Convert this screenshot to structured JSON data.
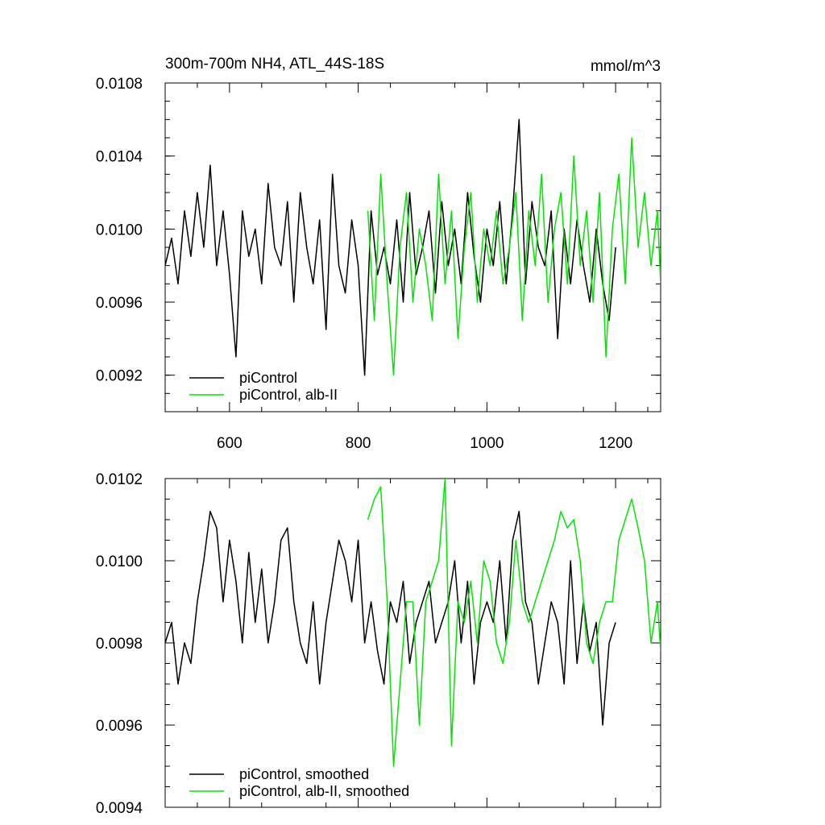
{
  "chart_data": [
    {
      "type": "line",
      "title": "300m-700m NH4, ATL_44S-18S",
      "units": "mmol/m^3",
      "xlim": [
        500,
        1270
      ],
      "ylim": [
        0.009,
        0.0108
      ],
      "xticks": [
        600,
        800,
        1000,
        1200
      ],
      "xtick_labels": [
        "600",
        "800",
        "1000",
        "1200"
      ],
      "yticks": [
        0.0092,
        0.0096,
        0.01,
        0.0104,
        0.0108
      ],
      "ytick_labels": [
        "0.0092",
        "0.0096",
        "0.0100",
        "0.0104",
        "0.0108"
      ],
      "grid": false,
      "legend_position": "bottom-left",
      "series": [
        {
          "name": "piControl",
          "color": "#000000",
          "x": [
            500,
            510,
            520,
            530,
            540,
            550,
            560,
            570,
            580,
            590,
            600,
            610,
            620,
            630,
            640,
            650,
            660,
            670,
            680,
            690,
            700,
            710,
            720,
            730,
            740,
            750,
            760,
            770,
            780,
            790,
            800,
            810,
            820,
            830,
            840,
            850,
            860,
            870,
            880,
            890,
            900,
            910,
            920,
            930,
            940,
            950,
            960,
            970,
            980,
            990,
            1000,
            1010,
            1020,
            1030,
            1040,
            1050,
            1060,
            1070,
            1080,
            1090,
            1100,
            1110,
            1120,
            1130,
            1140,
            1150,
            1160,
            1170,
            1180,
            1190,
            1200
          ],
          "values": [
            0.0098,
            0.00995,
            0.0097,
            0.0101,
            0.00985,
            0.0102,
            0.0099,
            0.01035,
            0.0098,
            0.0101,
            0.00975,
            0.0093,
            0.0101,
            0.00985,
            0.01,
            0.0097,
            0.01025,
            0.0099,
            0.0098,
            0.01015,
            0.0096,
            0.0102,
            0.0099,
            0.0097,
            0.01005,
            0.00945,
            0.0103,
            0.0098,
            0.00965,
            0.01005,
            0.0098,
            0.0092,
            0.0101,
            0.00975,
            0.0099,
            0.0097,
            0.01005,
            0.0096,
            0.0102,
            0.00975,
            0.0099,
            0.0101,
            0.00965,
            0.01015,
            0.0098,
            0.01,
            0.0097,
            0.0102,
            0.00985,
            0.0096,
            0.01,
            0.0098,
            0.01015,
            0.0097,
            0.0101,
            0.0106,
            0.0097,
            0.01015,
            0.0099,
            0.0098,
            0.0101,
            0.0094,
            0.01,
            0.0097,
            0.01005,
            0.0098,
            0.0096,
            0.01,
            0.0097,
            0.0095,
            0.0099
          ]
        },
        {
          "name": "piControl, alb-II",
          "color": "#00e600",
          "x": [
            815,
            825,
            835,
            845,
            855,
            865,
            875,
            885,
            895,
            905,
            915,
            925,
            935,
            945,
            955,
            965,
            975,
            985,
            995,
            1005,
            1015,
            1025,
            1035,
            1045,
            1055,
            1065,
            1075,
            1085,
            1095,
            1105,
            1115,
            1125,
            1135,
            1145,
            1155,
            1165,
            1175,
            1185,
            1195,
            1205,
            1215,
            1225,
            1235,
            1245,
            1255,
            1265,
            1270
          ],
          "values": [
            0.0101,
            0.0095,
            0.0103,
            0.0097,
            0.0092,
            0.0099,
            0.0102,
            0.0096,
            0.01,
            0.0098,
            0.0095,
            0.0103,
            0.0097,
            0.0101,
            0.0094,
            0.0099,
            0.0102,
            0.0096,
            0.01,
            0.0098,
            0.0101,
            0.0097,
            0.0099,
            0.0102,
            0.0095,
            0.0101,
            0.0098,
            0.0103,
            0.0096,
            0.01,
            0.0102,
            0.0097,
            0.0104,
            0.0098,
            0.0101,
            0.0096,
            0.0102,
            0.0093,
            0.01,
            0.0103,
            0.0097,
            0.0105,
            0.0099,
            0.0102,
            0.0098,
            0.0101,
            0.0097
          ]
        }
      ]
    },
    {
      "type": "line",
      "title": "",
      "xlim": [
        500,
        1270
      ],
      "ylim": [
        0.0094,
        0.0102
      ],
      "xticks": [
        600,
        800,
        1000,
        1200
      ],
      "yticks": [
        0.0094,
        0.0096,
        0.0098,
        0.01,
        0.0102
      ],
      "ytick_labels": [
        "0.0094",
        "0.0096",
        "0.0098",
        "0.0100",
        "0.0102"
      ],
      "grid": false,
      "legend_position": "bottom-left",
      "series": [
        {
          "name": "piControl, smoothed",
          "color": "#000000",
          "x": [
            500,
            510,
            520,
            530,
            540,
            550,
            560,
            570,
            580,
            590,
            600,
            610,
            620,
            630,
            640,
            650,
            660,
            670,
            680,
            690,
            700,
            710,
            720,
            730,
            740,
            750,
            760,
            770,
            780,
            790,
            800,
            810,
            820,
            830,
            840,
            850,
            860,
            870,
            880,
            890,
            900,
            910,
            920,
            930,
            940,
            950,
            960,
            970,
            980,
            990,
            1000,
            1010,
            1020,
            1030,
            1040,
            1050,
            1060,
            1070,
            1080,
            1090,
            1100,
            1110,
            1120,
            1130,
            1140,
            1150,
            1160,
            1170,
            1180,
            1190,
            1200
          ],
          "values": [
            0.0098,
            0.00985,
            0.0097,
            0.0098,
            0.00975,
            0.0099,
            0.01,
            0.01012,
            0.01008,
            0.0099,
            0.01005,
            0.00995,
            0.0098,
            0.01002,
            0.00985,
            0.00998,
            0.0098,
            0.0099,
            0.01005,
            0.01008,
            0.0099,
            0.0098,
            0.00975,
            0.0099,
            0.0097,
            0.00985,
            0.00995,
            0.01005,
            0.01,
            0.0099,
            0.01005,
            0.0098,
            0.0099,
            0.00978,
            0.0097,
            0.0099,
            0.00985,
            0.00995,
            0.00975,
            0.00985,
            0.0099,
            0.00995,
            0.0098,
            0.00985,
            0.0099,
            0.01,
            0.0098,
            0.00995,
            0.0097,
            0.00985,
            0.0099,
            0.00985,
            0.01,
            0.0098,
            0.01005,
            0.01012,
            0.0099,
            0.00985,
            0.0097,
            0.0098,
            0.0099,
            0.00985,
            0.0097,
            0.01,
            0.00975,
            0.0099,
            0.00978,
            0.00985,
            0.0096,
            0.0098,
            0.00985
          ]
        },
        {
          "name": "piControl, alb-II, smoothed",
          "color": "#00e600",
          "x": [
            815,
            825,
            835,
            845,
            855,
            865,
            875,
            885,
            895,
            905,
            915,
            925,
            935,
            945,
            955,
            965,
            975,
            985,
            995,
            1005,
            1015,
            1025,
            1035,
            1045,
            1055,
            1065,
            1075,
            1085,
            1095,
            1105,
            1115,
            1125,
            1135,
            1145,
            1155,
            1165,
            1175,
            1185,
            1195,
            1205,
            1215,
            1225,
            1235,
            1245,
            1255,
            1265,
            1270
          ],
          "values": [
            0.0101,
            0.01015,
            0.01018,
            0.0099,
            0.0095,
            0.0097,
            0.0099,
            0.0099,
            0.0096,
            0.0099,
            0.00995,
            0.01,
            0.0102,
            0.00955,
            0.0099,
            0.00985,
            0.00995,
            0.0098,
            0.01,
            0.00995,
            0.0098,
            0.00975,
            0.00985,
            0.01005,
            0.0099,
            0.00985,
            0.0099,
            0.00995,
            0.01,
            0.01005,
            0.01012,
            0.01008,
            0.0101,
            0.01,
            0.0098,
            0.00975,
            0.00985,
            0.0099,
            0.0099,
            0.01005,
            0.0101,
            0.01015,
            0.01008,
            0.01,
            0.0098,
            0.0099,
            0.00978
          ]
        }
      ]
    }
  ]
}
